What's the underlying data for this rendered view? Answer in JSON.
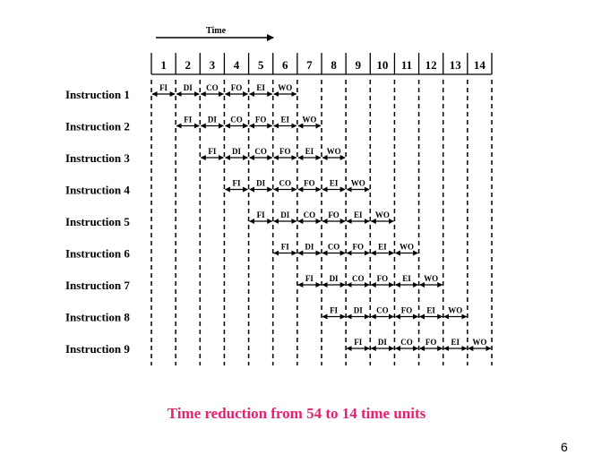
{
  "time_label": "Time",
  "time_units": [
    "1",
    "2",
    "3",
    "4",
    "5",
    "6",
    "7",
    "8",
    "9",
    "10",
    "11",
    "12",
    "13",
    "14"
  ],
  "stages": [
    "FI",
    "DI",
    "CO",
    "FO",
    "EI",
    "WO"
  ],
  "instructions": [
    {
      "label": "Instruction 1",
      "start": 1
    },
    {
      "label": "Instruction 2",
      "start": 2
    },
    {
      "label": "Instruction 3",
      "start": 3
    },
    {
      "label": "Instruction 4",
      "start": 4
    },
    {
      "label": "Instruction 5",
      "start": 5
    },
    {
      "label": "Instruction 6",
      "start": 6
    },
    {
      "label": "Instruction 7",
      "start": 7
    },
    {
      "label": "Instruction 8",
      "start": 8
    },
    {
      "label": "Instruction 9",
      "start": 9
    }
  ],
  "caption": "Time reduction from 54 to 14 time units",
  "page_number": "6",
  "colors": {
    "caption": "#e8206f",
    "ink": "#000000"
  }
}
